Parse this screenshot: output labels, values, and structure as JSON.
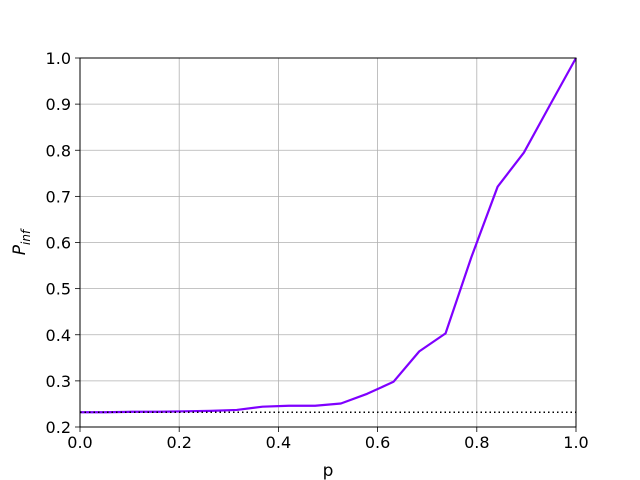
{
  "chart_data": {
    "type": "line",
    "title": "",
    "xlabel": "p",
    "ylabel": "P",
    "ylabel_subscript": "inf",
    "xlim": [
      0.0,
      1.0
    ],
    "ylim": [
      0.2,
      1.0
    ],
    "xticks": [
      "0.0",
      "0.2",
      "0.4",
      "0.6",
      "0.8",
      "1.0"
    ],
    "yticks": [
      "0.2",
      "0.3",
      "0.4",
      "0.5",
      "0.6",
      "0.7",
      "0.8",
      "0.9",
      "1.0"
    ],
    "grid": true,
    "series": [
      {
        "style": "solid",
        "color": "#7f00ff",
        "x": [
          0.0,
          0.05,
          0.105,
          0.158,
          0.21,
          0.263,
          0.316,
          0.368,
          0.421,
          0.474,
          0.526,
          0.579,
          0.632,
          0.684,
          0.737,
          0.789,
          0.842,
          0.895,
          0.947,
          1.0
        ],
        "y": [
          0.232,
          0.232,
          0.233,
          0.233,
          0.234,
          0.235,
          0.237,
          0.244,
          0.246,
          0.246,
          0.251,
          0.272,
          0.298,
          0.364,
          0.403,
          0.568,
          0.721,
          0.795,
          0.897,
          1.0
        ]
      },
      {
        "style": "dotted",
        "color": "#000000",
        "x": [
          0.0,
          1.0
        ],
        "y": [
          0.232,
          0.232
        ]
      }
    ]
  }
}
